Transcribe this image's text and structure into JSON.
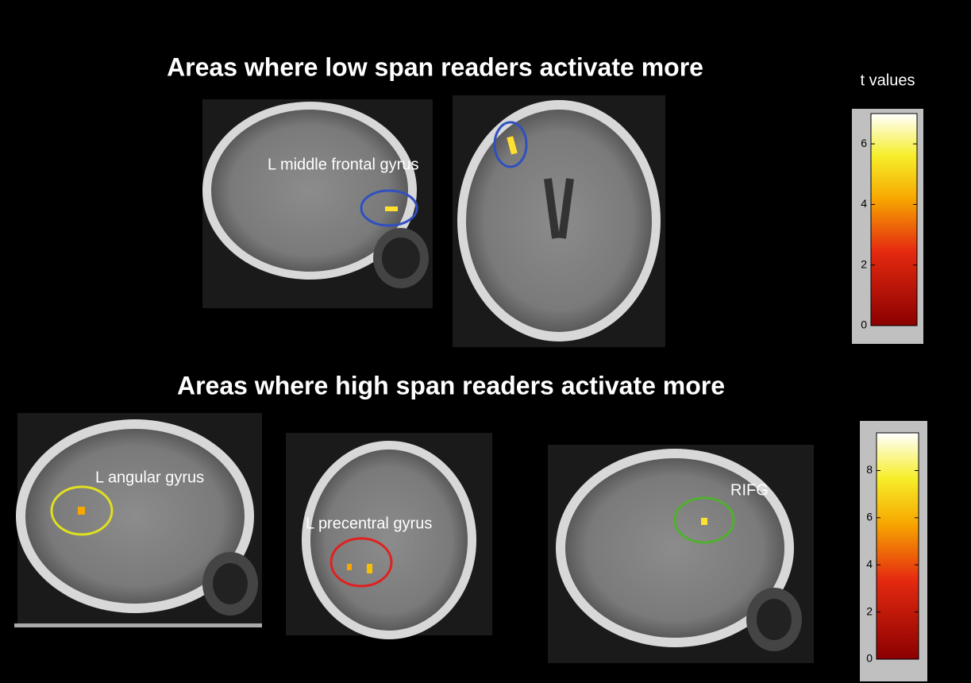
{
  "sections": [
    {
      "title": "Areas where low span readers activate more",
      "labels": [
        "L middle frontal gyrus"
      ]
    },
    {
      "title": "Areas where high span readers activate more",
      "labels": [
        "L angular gyrus",
        "L precentral gyrus",
        "RIFG"
      ]
    }
  ],
  "colorbars": [
    {
      "title": "t values",
      "lim": [
        0,
        7
      ],
      "ticks": [
        0,
        2,
        4,
        6
      ]
    },
    {
      "lim": [
        0,
        9.6
      ],
      "ticks": [
        0,
        2,
        4,
        6,
        8
      ]
    }
  ]
}
